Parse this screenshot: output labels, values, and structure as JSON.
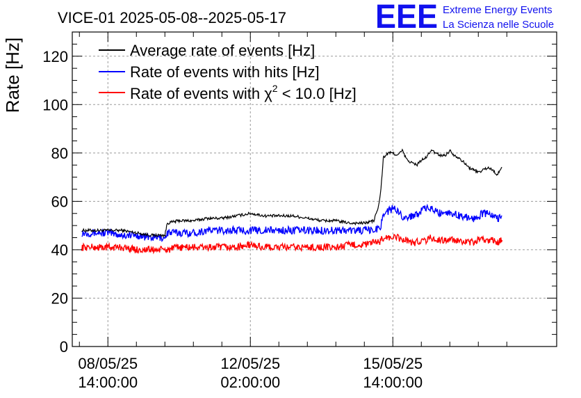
{
  "chart_data": {
    "type": "line",
    "title": "VICE-01 2025-05-08--2025-05-17",
    "xlabel": "",
    "ylabel": "Rate [Hz]",
    "ylim": [
      0,
      130
    ],
    "xlim_hours": [
      -15,
      189
    ],
    "x_unit": "hours since 08/05/25 14:00:00",
    "y_ticks": [
      "0",
      "20",
      "40",
      "60",
      "80",
      "100",
      "120"
    ],
    "y_tick_values": [
      0,
      20,
      40,
      60,
      80,
      100,
      120
    ],
    "x_ticks": [
      {
        "hours": 0,
        "date": "08/05/25",
        "time": "14:00:00"
      },
      {
        "hours": 60,
        "date": "12/05/25",
        "time": "02:00:00"
      },
      {
        "hours": 120,
        "date": "15/05/25",
        "time": "14:00:00"
      }
    ],
    "grid": true,
    "legend_position": "top-left",
    "series": [
      {
        "name": "Average rate of events [Hz]",
        "color": "#000000",
        "x": [
          -11,
          -5,
          0,
          6,
          12,
          18,
          24,
          25,
          30,
          36,
          42,
          48,
          54,
          60,
          66,
          72,
          78,
          84,
          90,
          96,
          102,
          108,
          112,
          114,
          115,
          116,
          118,
          120,
          122,
          124,
          126,
          128,
          130,
          132,
          134,
          136,
          138,
          140,
          142,
          144,
          146,
          148,
          150,
          152,
          154,
          156,
          158,
          160,
          162,
          164,
          166
        ],
        "values": [
          48,
          48,
          48,
          48,
          47,
          46,
          46,
          51,
          52,
          52,
          53,
          53,
          54,
          55,
          54,
          54,
          54,
          53,
          52,
          52,
          51,
          51,
          52,
          58,
          65,
          78,
          80,
          80,
          79,
          81,
          77,
          76,
          75,
          77,
          78,
          81,
          80,
          79,
          79,
          81,
          79,
          78,
          76,
          74,
          73,
          72,
          73,
          74,
          73,
          71,
          74
        ]
      },
      {
        "name": "Rate of events with hits [Hz]",
        "color": "#0000ff",
        "x": [
          -11,
          -5,
          0,
          6,
          12,
          18,
          24,
          25,
          30,
          36,
          42,
          48,
          54,
          60,
          66,
          72,
          78,
          84,
          90,
          96,
          102,
          108,
          112,
          114,
          115,
          116,
          118,
          120,
          122,
          124,
          126,
          128,
          130,
          132,
          134,
          136,
          138,
          140,
          142,
          144,
          146,
          148,
          150,
          152,
          154,
          156,
          158,
          160,
          162,
          164,
          166
        ],
        "values": [
          47,
          47,
          47,
          46,
          46,
          45,
          45,
          47,
          47,
          47,
          48,
          48,
          48,
          48,
          48,
          48,
          48,
          48,
          48,
          48,
          48,
          48,
          48,
          49,
          50,
          55,
          56,
          57,
          56,
          54,
          53,
          54,
          55,
          56,
          57,
          57,
          56,
          55,
          56,
          55,
          55,
          54,
          54,
          53,
          53,
          54,
          55,
          55,
          54,
          53,
          54
        ]
      },
      {
        "name": "Rate of events with χ² < 10.0 [Hz]",
        "color": "#ff0000",
        "x": [
          -11,
          -5,
          0,
          6,
          12,
          18,
          24,
          25,
          30,
          36,
          42,
          48,
          54,
          60,
          66,
          72,
          78,
          84,
          90,
          96,
          102,
          108,
          112,
          114,
          115,
          116,
          118,
          120,
          122,
          124,
          126,
          128,
          130,
          132,
          134,
          136,
          138,
          140,
          142,
          144,
          146,
          148,
          150,
          152,
          154,
          156,
          158,
          160,
          162,
          164,
          166
        ],
        "values": [
          41,
          41,
          41,
          41,
          40,
          40,
          40,
          40,
          41,
          41,
          41,
          41,
          41,
          42,
          41,
          41,
          41,
          41,
          41,
          41,
          42,
          42,
          43,
          43,
          44,
          45,
          45,
          45,
          45,
          44,
          44,
          43,
          43,
          44,
          44,
          45,
          44,
          44,
          44,
          44,
          44,
          43,
          43,
          43,
          43,
          44,
          44,
          44,
          44,
          43,
          44
        ]
      }
    ]
  },
  "legend": {
    "items": [
      {
        "prefix": "Average rate of events [Hz]",
        "chi": "",
        "sup": "",
        "suffix": "",
        "color": "#000000"
      },
      {
        "prefix": "Rate of events with hits [Hz]",
        "chi": "",
        "sup": "",
        "suffix": "",
        "color": "#0000ff"
      },
      {
        "prefix": "Rate of events with ",
        "chi": "χ",
        "sup": "2",
        "suffix": " < 10.0 [Hz]",
        "color": "#ff0000"
      }
    ]
  },
  "logo": {
    "mark": "EEE",
    "line1": "Extreme Energy Events",
    "line2": "La Scienza nelle Scuole",
    "color": "#1111ee"
  }
}
